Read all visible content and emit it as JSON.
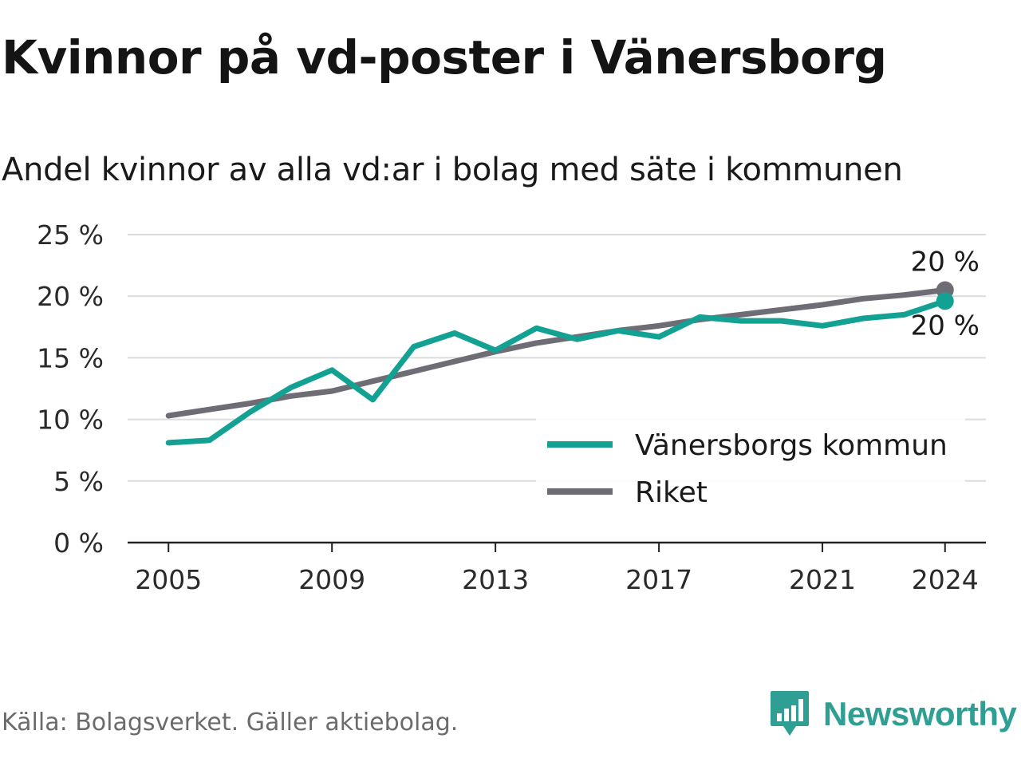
{
  "title": "Kvinnor på vd-poster i Vänersborg",
  "subtitle": "Andel kvinnor av alla vd:ar i bolag med säte i kommunen",
  "source": "Källa: Bolagsverket. Gäller aktiebolag.",
  "brand": {
    "name": "Newsworthy",
    "icon": "bar-chart-speech-bubble-logo"
  },
  "colors": {
    "municipality": "#13a194",
    "national": "#6e6d75",
    "grid": "#dcdcdc",
    "axis": "#222222",
    "brand": "#2f9e93"
  },
  "chart_data": {
    "type": "line",
    "x": [
      2005,
      2006,
      2007,
      2008,
      2009,
      2010,
      2011,
      2012,
      2013,
      2014,
      2015,
      2016,
      2017,
      2018,
      2019,
      2020,
      2021,
      2022,
      2023,
      2024
    ],
    "series": [
      {
        "name": "Vänersborgs kommun",
        "color": "#13a194",
        "values": [
          8.1,
          8.3,
          10.6,
          12.6,
          14.0,
          11.6,
          15.9,
          17.0,
          15.6,
          17.4,
          16.5,
          17.2,
          16.7,
          18.3,
          18.0,
          18.0,
          17.6,
          18.2,
          18.5,
          19.6
        ],
        "end_label": "20 %"
      },
      {
        "name": "Riket",
        "color": "#6e6d75",
        "values": [
          10.3,
          10.8,
          11.3,
          11.9,
          12.3,
          13.1,
          13.9,
          14.7,
          15.5,
          16.2,
          16.7,
          17.2,
          17.6,
          18.1,
          18.5,
          18.9,
          19.3,
          19.8,
          20.1,
          20.5
        ],
        "end_label": "20 %"
      }
    ],
    "x_ticks": [
      2005,
      2009,
      2013,
      2017,
      2021,
      2024
    ],
    "x_tick_labels": [
      "2005",
      "2009",
      "2013",
      "2017",
      "2021",
      "2024"
    ],
    "y_ticks": [
      0,
      5,
      10,
      15,
      20,
      25
    ],
    "y_tick_labels": [
      "0 %",
      "5 %",
      "10 %",
      "15 %",
      "20 %",
      "25 %"
    ],
    "xlim": [
      2004.0,
      2025.0
    ],
    "ylim": [
      0,
      25
    ],
    "xlabel": "",
    "ylabel": "",
    "grid": true,
    "legend_position": "bottom-right"
  }
}
